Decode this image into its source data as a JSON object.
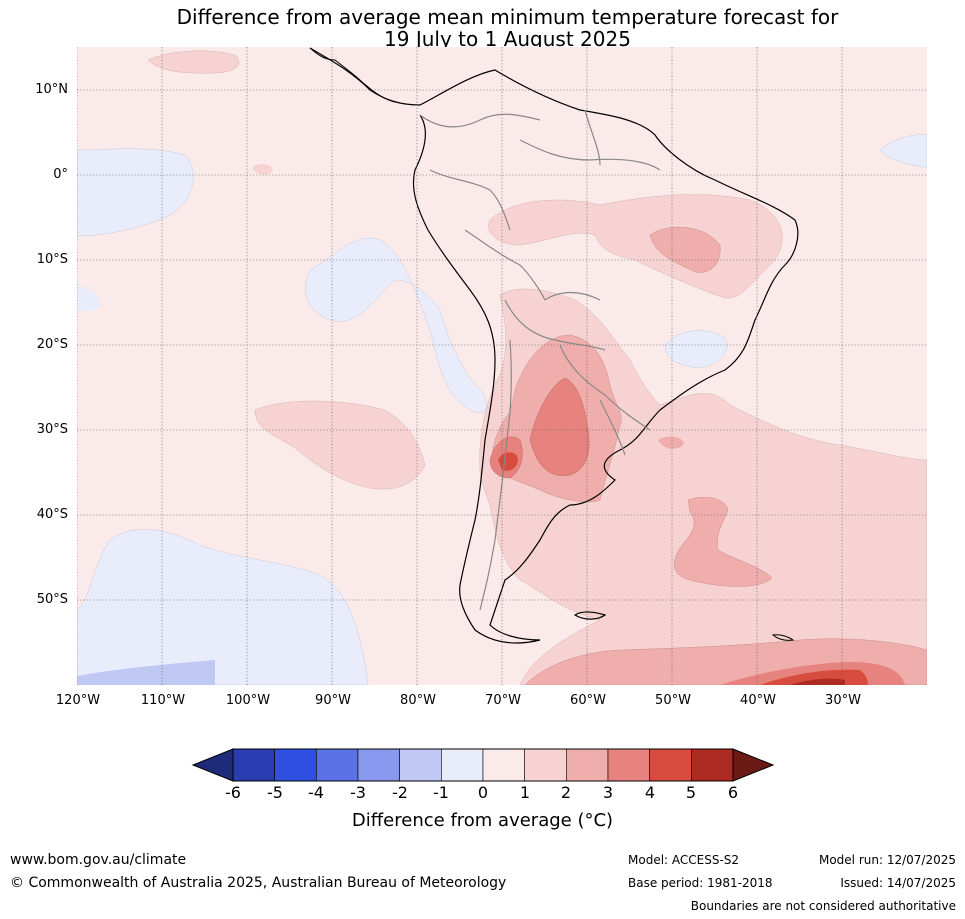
{
  "title_line1": "Difference from average mean minimum temperature forecast for",
  "title_line2": "19 July to 1 August 2025",
  "lat_labels": [
    "10°N",
    "0°",
    "10°S",
    "20°S",
    "30°S",
    "40°S",
    "50°S"
  ],
  "lon_labels": [
    "120°W",
    "110°W",
    "100°W",
    "90°W",
    "80°W",
    "70°W",
    "60°W",
    "50°W",
    "40°W",
    "30°W"
  ],
  "colorbar": {
    "ticks": [
      "-6",
      "-5",
      "-4",
      "-3",
      "-2",
      "-1",
      "0",
      "1",
      "2",
      "3",
      "4",
      "5",
      "6"
    ],
    "colors": [
      "#1e2a7a",
      "#2a3db0",
      "#2f4fe0",
      "#5a72e6",
      "#8898ee",
      "#c0c8f4",
      "#e8ecfb",
      "#fbeaea",
      "#f6d3d2",
      "#efaeab",
      "#e6837e",
      "#d84b3f",
      "#ab2a22",
      "#6b1a16"
    ],
    "label": "Difference from average (°C)"
  },
  "footer": {
    "url": "www.bom.gov.au/climate",
    "copyright": "© Commonwealth of Australia 2025, Australian Bureau of Meteorology",
    "model": "Model: ACCESS-S2",
    "base_period": "Base period: 1981-2018",
    "model_run": "Model run: 12/07/2025",
    "issued": "Issued: 14/07/2025",
    "disclaimer": "Boundaries are not considered authoritative"
  }
}
